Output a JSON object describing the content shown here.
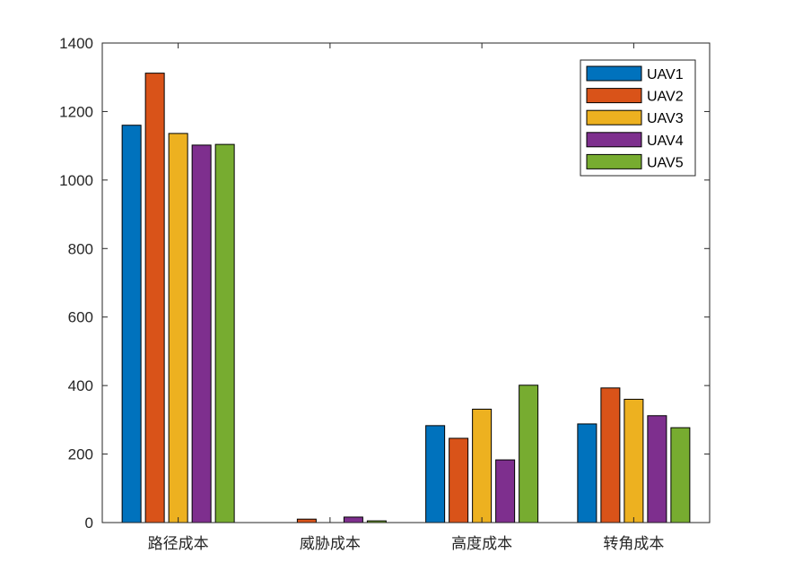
{
  "chart_data": {
    "type": "bar",
    "categories": [
      "路径成本",
      "威胁成本",
      "高度成本",
      "转角成本"
    ],
    "series": [
      {
        "name": "UAV1",
        "color": "#0072BD",
        "values": [
          1160,
          0,
          283,
          288
        ]
      },
      {
        "name": "UAV2",
        "color": "#D95319",
        "values": [
          1312,
          10,
          246,
          393
        ]
      },
      {
        "name": "UAV3",
        "color": "#EDB120",
        "values": [
          1136,
          0,
          331,
          360
        ]
      },
      {
        "name": "UAV4",
        "color": "#7E2F8E",
        "values": [
          1102,
          16,
          183,
          312
        ]
      },
      {
        "name": "UAV5",
        "color": "#77AC30",
        "values": [
          1104,
          5,
          401,
          277
        ]
      }
    ],
    "ylim": [
      0,
      1400
    ],
    "yticks": [
      0,
      200,
      400,
      600,
      800,
      1000,
      1200,
      1400
    ],
    "legend_position": "top-right",
    "grid": false,
    "box": true
  }
}
